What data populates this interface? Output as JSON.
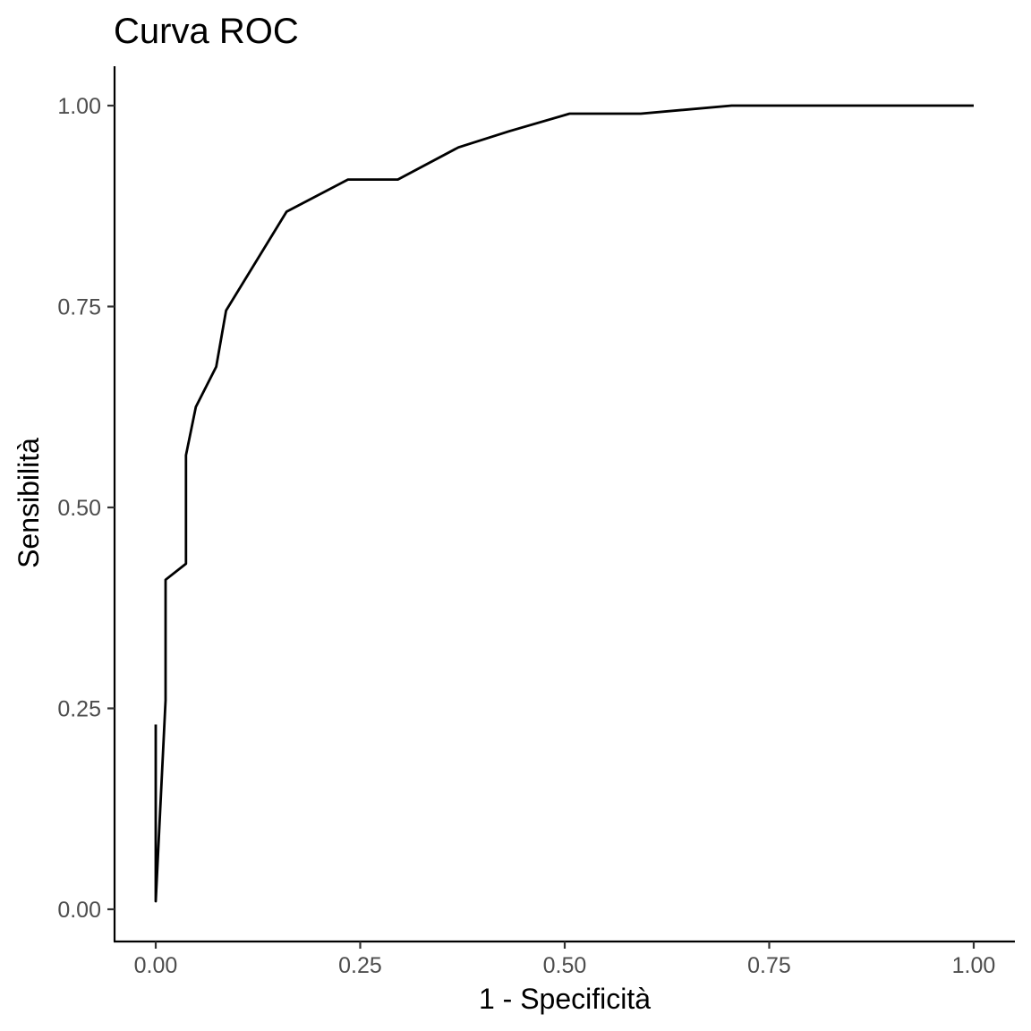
{
  "chart_data": {
    "type": "line",
    "title": "Curva ROC",
    "xlabel": "1 - Specificità",
    "ylabel": "Sensibilità",
    "xlim": [
      0,
      1
    ],
    "ylim": [
      0,
      1
    ],
    "grid": false,
    "x_ticks": [
      0,
      0.25,
      0.5,
      0.75,
      1
    ],
    "x_tick_labels": [
      "0.00",
      "0.25",
      "0.50",
      "0.75",
      "1.00"
    ],
    "y_ticks": [
      0,
      0.25,
      0.5,
      0.75,
      1
    ],
    "y_tick_labels": [
      "0.00",
      "0.25",
      "0.50",
      "0.75",
      "1.00"
    ],
    "series": [
      {
        "color": "#000000",
        "x": [
          0.0,
          0.0,
          0.012,
          0.012,
          0.037,
          0.037,
          0.049,
          0.074,
          0.086,
          0.16,
          0.235,
          0.296,
          0.37,
          0.432,
          0.506,
          0.593,
          0.704,
          1.0
        ],
        "y": [
          0.23,
          0.01,
          0.26,
          0.41,
          0.43,
          0.565,
          0.625,
          0.675,
          0.745,
          0.868,
          0.908,
          0.908,
          0.948,
          0.968,
          0.99,
          0.99,
          1.0,
          1.0
        ]
      }
    ]
  }
}
